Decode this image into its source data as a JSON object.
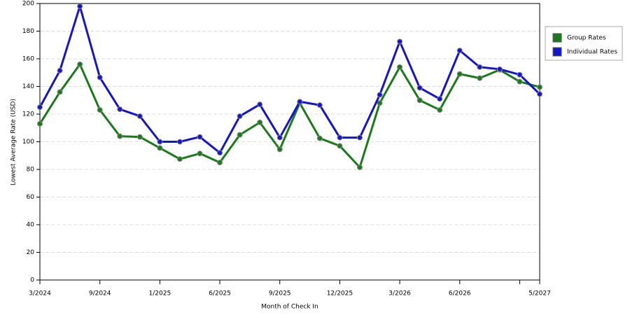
{
  "chart_data": {
    "type": "line",
    "x_label": "Month of Check In",
    "y_label": "Lowest Average Rate (USD)",
    "categories": [
      "3/2024",
      null,
      null,
      "9/2024",
      null,
      null,
      "1/2025",
      null,
      null,
      "6/2025",
      null,
      null,
      "9/2025",
      null,
      null,
      "12/2025",
      null,
      null,
      "3/2026",
      null,
      null,
      "6/2026",
      null,
      null,
      null,
      "5/2027"
    ],
    "series": [
      {
        "name": "Group Rates",
        "color": "#1a7a1a",
        "values": [
          113,
          136,
          156,
          123,
          104,
          103.5,
          95.5,
          87.5,
          91.5,
          85,
          105,
          114,
          94.5,
          128,
          102.5,
          97,
          81.5,
          128,
          154,
          130,
          123,
          149,
          146,
          152,
          143.5,
          139.5
        ]
      },
      {
        "name": "Individual Rates",
        "color": "#1515c8",
        "values": [
          125,
          151.5,
          198,
          146.5,
          123.5,
          118.5,
          100,
          100,
          103.5,
          92,
          118.5,
          127,
          103,
          129,
          126.5,
          103,
          103,
          134,
          172.5,
          139,
          131,
          166,
          154,
          152.5,
          148.5,
          134.5
        ]
      }
    ],
    "ylim": [
      0,
      200
    ],
    "yticks": [
      0,
      20,
      40,
      60,
      80,
      100,
      120,
      140,
      160,
      180,
      200
    ],
    "grid": true,
    "legend": "right"
  }
}
